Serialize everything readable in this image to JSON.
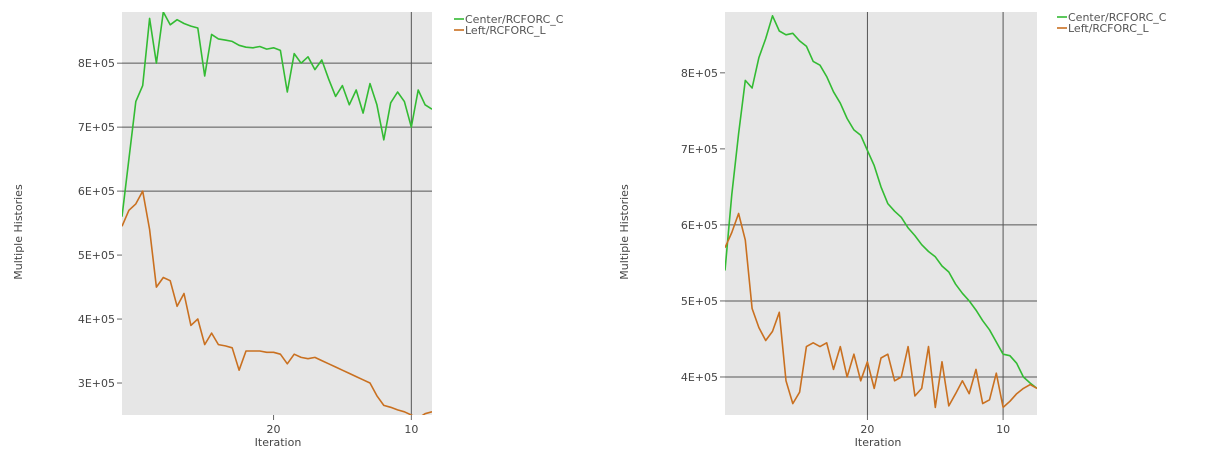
{
  "colors": {
    "plot_background": "#e6e6e6",
    "gridline": "#555555",
    "series_center": "#33bb33",
    "series_left": "#c97020"
  },
  "chart_data": [
    {
      "type": "line",
      "xlabel": "Iteration",
      "ylabel": "Multiple Histories",
      "xlim": [
        31,
        8.5
      ],
      "ylim": [
        250000,
        880000
      ],
      "x_ticks": [
        20,
        10
      ],
      "x_tick_labels": [
        "20",
        "10"
      ],
      "y_ticks": [
        300000,
        400000,
        500000,
        600000,
        700000,
        800000
      ],
      "y_tick_labels": [
        "3E+05",
        "4E+05",
        "5E+05",
        "6E+05",
        "7E+05",
        "8E+05"
      ],
      "grid_x": [
        10
      ],
      "grid_y": [
        600000,
        700000,
        800000
      ],
      "legend_position": "outside-right-top",
      "series": [
        {
          "name": "Center/RCFORC_C",
          "color_key": "series_center",
          "x": [
            31,
            30.5,
            30,
            29.5,
            29,
            28.5,
            28,
            27.5,
            27,
            26.5,
            26,
            25.5,
            25,
            24.5,
            24,
            23.5,
            23,
            22.5,
            22,
            21.5,
            21,
            20.5,
            20,
            19.5,
            19,
            18.5,
            18,
            17.5,
            17,
            16.5,
            16,
            15.5,
            15,
            14.5,
            14,
            13.5,
            13,
            12.5,
            12,
            11.5,
            11,
            10.5,
            10,
            9.5,
            9,
            8.5
          ],
          "y": [
            560000,
            650000,
            740000,
            765000,
            870000,
            800000,
            880000,
            860000,
            868000,
            862000,
            858000,
            855000,
            780000,
            845000,
            838000,
            836000,
            834000,
            828000,
            825000,
            824000,
            826000,
            822000,
            824000,
            820000,
            755000,
            815000,
            800000,
            810000,
            790000,
            805000,
            775000,
            748000,
            765000,
            735000,
            758000,
            722000,
            768000,
            735000,
            680000,
            738000,
            755000,
            740000,
            700000,
            758000,
            735000,
            728000
          ]
        },
        {
          "name": "Left/RCFORC_L",
          "color_key": "series_left",
          "x": [
            31,
            30.5,
            30,
            29.5,
            29,
            28.5,
            28,
            27.5,
            27,
            26.5,
            26,
            25.5,
            25,
            24.5,
            24,
            23.5,
            23,
            22.5,
            22,
            21.5,
            21,
            20.5,
            20,
            19.5,
            19,
            18.5,
            18,
            17.5,
            17,
            16.5,
            16,
            15.5,
            15,
            14.5,
            14,
            13.5,
            13,
            12.5,
            12,
            11.5,
            11,
            10.5,
            10,
            9.5,
            9,
            8.5
          ],
          "y": [
            545000,
            570000,
            580000,
            600000,
            540000,
            450000,
            465000,
            460000,
            420000,
            440000,
            390000,
            400000,
            360000,
            378000,
            360000,
            358000,
            355000,
            320000,
            350000,
            350000,
            350000,
            348000,
            348000,
            345000,
            330000,
            345000,
            340000,
            338000,
            340000,
            335000,
            330000,
            325000,
            320000,
            315000,
            310000,
            305000,
            300000,
            280000,
            265000,
            262000,
            258000,
            255000,
            250000,
            245000,
            252000,
            255000
          ]
        }
      ]
    },
    {
      "type": "line",
      "xlabel": "Iteration",
      "ylabel": "Multiple Histories",
      "xlim": [
        30.5,
        7.5
      ],
      "ylim": [
        350000,
        880000
      ],
      "x_ticks": [
        20,
        10
      ],
      "x_tick_labels": [
        "20",
        "10"
      ],
      "y_ticks": [
        400000,
        500000,
        600000,
        700000,
        800000
      ],
      "y_tick_labels": [
        "4E+05",
        "5E+05",
        "6E+05",
        "7E+05",
        "8E+05"
      ],
      "grid_x": [
        20,
        10
      ],
      "grid_y": [
        400000,
        500000,
        600000
      ],
      "legend_position": "outside-right-top",
      "series": [
        {
          "name": "Center/RCFORC_C",
          "color_key": "series_center",
          "x": [
            30.5,
            30,
            29.5,
            29,
            28.5,
            28,
            27.5,
            27,
            26.5,
            26,
            25.5,
            25,
            24.5,
            24,
            23.5,
            23,
            22.5,
            22,
            21.5,
            21,
            20.5,
            20,
            19.5,
            19,
            18.5,
            18,
            17.5,
            17,
            16.5,
            16,
            15.5,
            15,
            14.5,
            14,
            13.5,
            13,
            12.5,
            12,
            11.5,
            11,
            10.5,
            10,
            9.5,
            9,
            8.5,
            8,
            7.5
          ],
          "y": [
            540000,
            640000,
            720000,
            790000,
            780000,
            820000,
            845000,
            875000,
            855000,
            850000,
            852000,
            842000,
            835000,
            815000,
            810000,
            795000,
            775000,
            760000,
            740000,
            725000,
            718000,
            698000,
            678000,
            650000,
            628000,
            618000,
            610000,
            596000,
            586000,
            574000,
            565000,
            558000,
            546000,
            538000,
            522000,
            510000,
            500000,
            488000,
            474000,
            462000,
            446000,
            430000,
            428000,
            418000,
            400000,
            392000,
            385000
          ]
        },
        {
          "name": "Left/RCFORC_L",
          "color_key": "series_left",
          "x": [
            30.5,
            30,
            29.5,
            29,
            28.5,
            28,
            27.5,
            27,
            26.5,
            26,
            25.5,
            25,
            24.5,
            24,
            23.5,
            23,
            22.5,
            22,
            21.5,
            21,
            20.5,
            20,
            19.5,
            19,
            18.5,
            18,
            17.5,
            17,
            16.5,
            16,
            15.5,
            15,
            14.5,
            14,
            13.5,
            13,
            12.5,
            12,
            11.5,
            11,
            10.5,
            10,
            9.5,
            9,
            8.5,
            8,
            7.5
          ],
          "y": [
            570000,
            590000,
            615000,
            580000,
            490000,
            465000,
            448000,
            460000,
            485000,
            395000,
            365000,
            380000,
            440000,
            445000,
            440000,
            445000,
            410000,
            440000,
            400000,
            430000,
            395000,
            420000,
            385000,
            425000,
            430000,
            395000,
            400000,
            440000,
            375000,
            385000,
            440000,
            360000,
            420000,
            362000,
            378000,
            395000,
            378000,
            410000,
            365000,
            370000,
            405000,
            360000,
            368000,
            378000,
            385000,
            390000,
            385000
          ]
        }
      ]
    }
  ]
}
